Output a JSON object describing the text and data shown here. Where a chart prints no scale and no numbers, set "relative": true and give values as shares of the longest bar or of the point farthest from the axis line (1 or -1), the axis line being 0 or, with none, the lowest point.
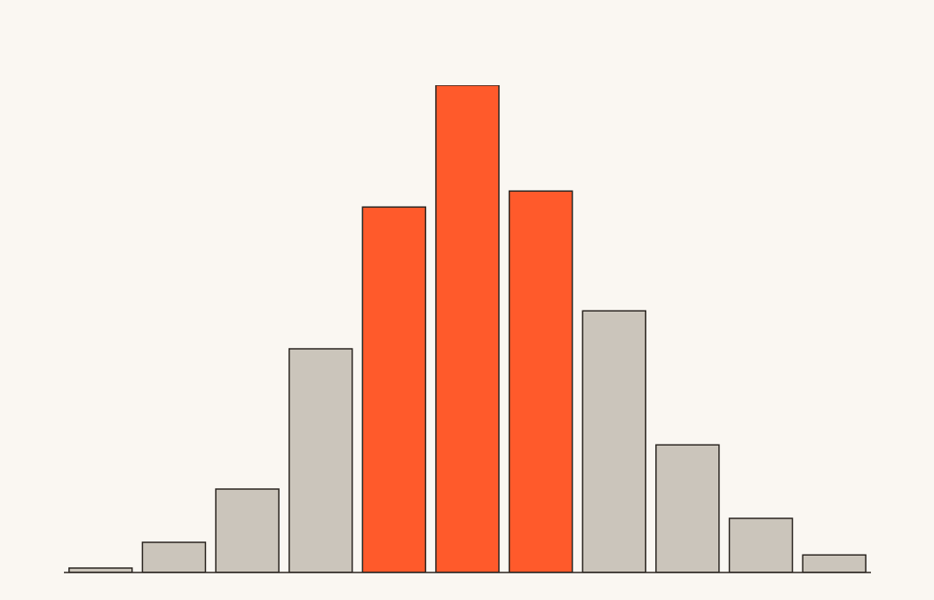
{
  "chart_data": {
    "type": "bar",
    "relative": true,
    "categories": [
      null,
      null,
      null,
      null,
      null,
      null,
      null,
      null,
      null,
      null,
      null
    ],
    "values": [
      0.009,
      0.062,
      0.171,
      0.459,
      0.75,
      1,
      0.783,
      0.537,
      0.262,
      0.111,
      0.036
    ],
    "colors": [
      "#cbc5bb",
      "#cbc5bb",
      "#cbc5bb",
      "#cbc5bb",
      "#ff5a2b",
      "#ff5a2b",
      "#ff5a2b",
      "#cbc5bb",
      "#cbc5bb",
      "#cbc5bb",
      "#cbc5bb"
    ]
  }
}
